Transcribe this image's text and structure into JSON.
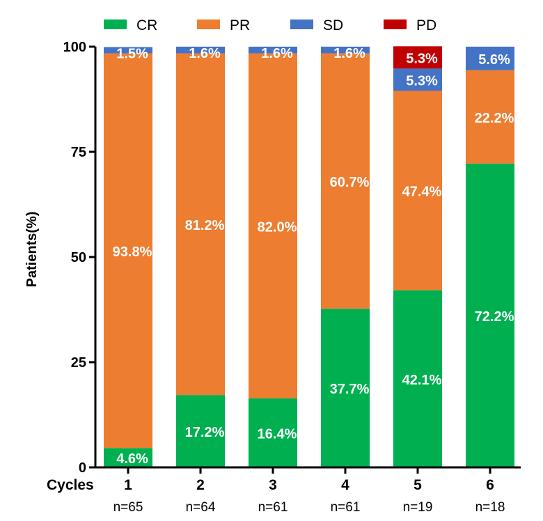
{
  "chart_data": {
    "type": "bar",
    "stacked": true,
    "title": "",
    "xlabel": "Cycles",
    "ylabel": "Patients(%)",
    "ylim": [
      0,
      100
    ],
    "yticks": [
      0,
      25,
      50,
      75,
      100
    ],
    "categories": [
      "1",
      "2",
      "3",
      "4",
      "5",
      "6"
    ],
    "sample_sizes": [
      "n=65",
      "n=64",
      "n=61",
      "n=61",
      "n=19",
      "n=18"
    ],
    "legend_position": "top",
    "series": [
      {
        "name": "CR",
        "color": "#00b050",
        "values": [
          4.6,
          17.2,
          16.4,
          37.7,
          42.1,
          72.2
        ],
        "labels": [
          "4.6%",
          "17.2%",
          "16.4%",
          "37.7%",
          "42.1%",
          "72.2%"
        ]
      },
      {
        "name": "PR",
        "color": "#ed7d31",
        "values": [
          93.8,
          81.2,
          82.0,
          60.7,
          47.4,
          22.2
        ],
        "labels": [
          "93.8%",
          "81.2%",
          "82.0%",
          "60.7%",
          "47.4%",
          "22.2%"
        ]
      },
      {
        "name": "SD",
        "color": "#4472c4",
        "values": [
          1.5,
          1.6,
          1.6,
          1.6,
          5.3,
          5.6
        ],
        "labels": [
          "1.5%",
          "1.6%",
          "1.6%",
          "1.6%",
          "5.3%",
          "5.6%"
        ]
      },
      {
        "name": "PD",
        "color": "#c00000",
        "values": [
          0,
          0,
          0,
          0,
          5.3,
          0
        ],
        "labels": [
          "",
          "",
          "",
          "",
          "5.3%",
          ""
        ]
      }
    ]
  }
}
